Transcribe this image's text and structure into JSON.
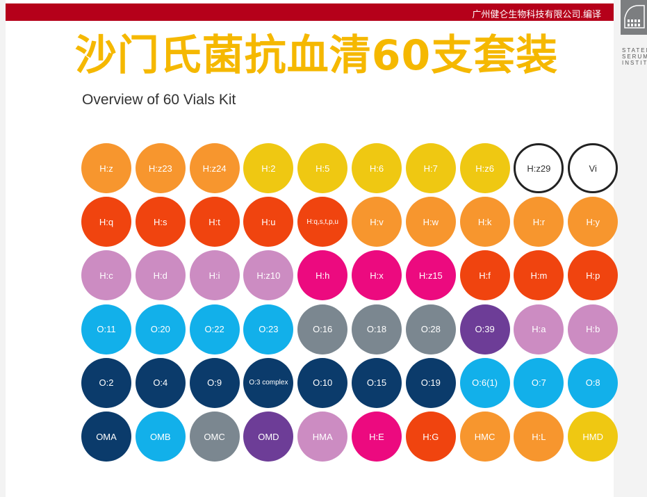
{
  "header": {
    "company": "广州健仑生物科技有限公司.编译",
    "title": "沙门氏菌抗血清60支套装",
    "subtitle": "Overview of 60 Vials Kit"
  },
  "logo": {
    "lines": [
      "STATENS",
      "SERUM",
      "INSTITUT"
    ],
    "icon": "building-icon"
  },
  "colors": {
    "orange": "#f7962e",
    "yellow": "#efc812",
    "red": "#f0440f",
    "lilac": "#cc8cc2",
    "magenta": "#ec0a7f",
    "cyan": "#12b0ea",
    "gray": "#7b8790",
    "purple": "#6d3d97",
    "navy": "#0b3b6b",
    "outline": "#ffffff"
  },
  "rows": [
    [
      [
        "H:z",
        "orange"
      ],
      [
        "H:z23",
        "orange"
      ],
      [
        "H:z24",
        "orange"
      ],
      [
        "H:2",
        "yellow"
      ],
      [
        "H:5",
        "yellow"
      ],
      [
        "H:6",
        "yellow"
      ],
      [
        "H:7",
        "yellow"
      ],
      [
        "H:z6",
        "yellow"
      ],
      [
        "H:z29",
        "outline"
      ],
      [
        "Vi",
        "outline"
      ]
    ],
    [
      [
        "H:q",
        "red"
      ],
      [
        "H:s",
        "red"
      ],
      [
        "H:t",
        "red"
      ],
      [
        "H:u",
        "red"
      ],
      [
        "H:q,s,t,p,u",
        "red"
      ],
      [
        "H:v",
        "orange"
      ],
      [
        "H:w",
        "orange"
      ],
      [
        "H:k",
        "orange"
      ],
      [
        "H:r",
        "orange"
      ],
      [
        "H:y",
        "orange"
      ]
    ],
    [
      [
        "H:c",
        "lilac"
      ],
      [
        "H:d",
        "lilac"
      ],
      [
        "H:i",
        "lilac"
      ],
      [
        "H:z10",
        "lilac"
      ],
      [
        "H:h",
        "magenta"
      ],
      [
        "H:x",
        "magenta"
      ],
      [
        "H:z15",
        "magenta"
      ],
      [
        "H:f",
        "red"
      ],
      [
        "H:m",
        "red"
      ],
      [
        "H:p",
        "red"
      ]
    ],
    [
      [
        "O:11",
        "cyan"
      ],
      [
        "O:20",
        "cyan"
      ],
      [
        "O:22",
        "cyan"
      ],
      [
        "O:23",
        "cyan"
      ],
      [
        "O:16",
        "gray"
      ],
      [
        "O:18",
        "gray"
      ],
      [
        "O:28",
        "gray"
      ],
      [
        "O:39",
        "purple"
      ],
      [
        "H:a",
        "lilac"
      ],
      [
        "H:b",
        "lilac"
      ]
    ],
    [
      [
        "O:2",
        "navy"
      ],
      [
        "O:4",
        "navy"
      ],
      [
        "O:9",
        "navy"
      ],
      [
        "O:3 complex",
        "navy"
      ],
      [
        "O:10",
        "navy"
      ],
      [
        "O:15",
        "navy"
      ],
      [
        "O:19",
        "navy"
      ],
      [
        "O:6(1)",
        "cyan"
      ],
      [
        "O:7",
        "cyan"
      ],
      [
        "O:8",
        "cyan"
      ]
    ],
    [
      [
        "OMA",
        "navy"
      ],
      [
        "OMB",
        "cyan"
      ],
      [
        "OMC",
        "gray"
      ],
      [
        "OMD",
        "purple"
      ],
      [
        "HMA",
        "lilac"
      ],
      [
        "H:E",
        "magenta"
      ],
      [
        "H:G",
        "red"
      ],
      [
        "HMC",
        "orange"
      ],
      [
        "H:L",
        "orange"
      ],
      [
        "HMD",
        "yellow"
      ]
    ]
  ]
}
